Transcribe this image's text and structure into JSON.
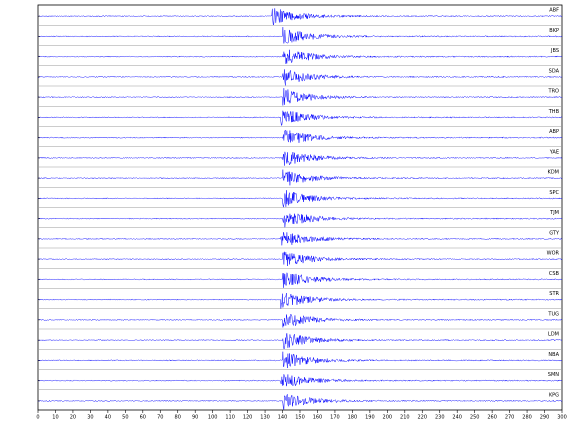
{
  "chart_data": {
    "type": "seismogram",
    "stations": [
      {
        "name": "ABF",
        "onset": 134
      },
      {
        "name": "BKP",
        "onset": 140
      },
      {
        "name": "JBS",
        "onset": 140
      },
      {
        "name": "SDA",
        "onset": 140
      },
      {
        "name": "TRO",
        "onset": 140
      },
      {
        "name": "THB",
        "onset": 139
      },
      {
        "name": "ABP",
        "onset": 140
      },
      {
        "name": "YAE",
        "onset": 140
      },
      {
        "name": "KDM",
        "onset": 140
      },
      {
        "name": "SPC",
        "onset": 140
      },
      {
        "name": "TJM",
        "onset": 140
      },
      {
        "name": "GTY",
        "onset": 139
      },
      {
        "name": "WOR",
        "onset": 140
      },
      {
        "name": "CSB",
        "onset": 140
      },
      {
        "name": "STR",
        "onset": 139
      },
      {
        "name": "TUG",
        "onset": 140
      },
      {
        "name": "LDM",
        "onset": 140
      },
      {
        "name": "NBA",
        "onset": 140
      },
      {
        "name": "SMN",
        "onset": 139
      },
      {
        "name": "KPG",
        "onset": 140
      }
    ],
    "color": "#0000ff",
    "xlim": [
      0,
      300
    ],
    "xticks": [
      0,
      10,
      20,
      30,
      40,
      50,
      60,
      70,
      80,
      90,
      100,
      110,
      120,
      130,
      140,
      150,
      160,
      170,
      180,
      190,
      200,
      210,
      220,
      230,
      240,
      250,
      260,
      270,
      280,
      290,
      300
    ]
  }
}
